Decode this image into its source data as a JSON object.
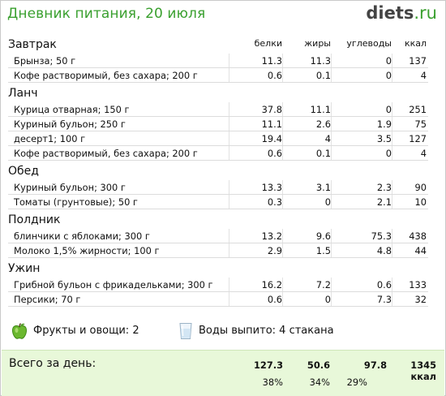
{
  "header": {
    "title": "Дневник питания, 20 июля",
    "logo_main": "diets",
    "logo_tld": ".ru"
  },
  "columns": {
    "protein": "белки",
    "fat": "жиры",
    "carbs": "углеводы",
    "kcal": "ккал"
  },
  "meals": [
    {
      "title": "Завтрак",
      "items": [
        {
          "name": "Брынза; 50 г",
          "protein": "11.3",
          "fat": "11.3",
          "carbs": "0",
          "kcal": "137"
        },
        {
          "name": "Кофе растворимый, без сахара; 200 г",
          "protein": "0.6",
          "fat": "0.1",
          "carbs": "0",
          "kcal": "4"
        }
      ]
    },
    {
      "title": "Ланч",
      "items": [
        {
          "name": "Курица отварная; 150 г",
          "protein": "37.8",
          "fat": "11.1",
          "carbs": "0",
          "kcal": "251"
        },
        {
          "name": "Куриный бульон; 250 г",
          "protein": "11.1",
          "fat": "2.6",
          "carbs": "1.9",
          "kcal": "75"
        },
        {
          "name": "десерт1; 100 г",
          "protein": "19.4",
          "fat": "4",
          "carbs": "3.5",
          "kcal": "127"
        },
        {
          "name": "Кофе растворимый, без сахара; 200 г",
          "protein": "0.6",
          "fat": "0.1",
          "carbs": "0",
          "kcal": "4"
        }
      ]
    },
    {
      "title": "Обед",
      "items": [
        {
          "name": "Куриный бульон; 300 г",
          "protein": "13.3",
          "fat": "3.1",
          "carbs": "2.3",
          "kcal": "90"
        },
        {
          "name": "Томаты (грунтовые); 50 г",
          "protein": "0.3",
          "fat": "0",
          "carbs": "2.1",
          "kcal": "10"
        }
      ]
    },
    {
      "title": "Полдник",
      "items": [
        {
          "name": "блинчики с яблоками; 300 г",
          "protein": "13.2",
          "fat": "9.6",
          "carbs": "75.3",
          "kcal": "438"
        },
        {
          "name": "Молоко 1,5% жирности; 100 г",
          "protein": "2.9",
          "fat": "1.5",
          "carbs": "4.8",
          "kcal": "44"
        }
      ]
    },
    {
      "title": "Ужин",
      "items": [
        {
          "name": "Грибной бульон с фрикадельками; 300 г",
          "protein": "16.2",
          "fat": "7.2",
          "carbs": "0.6",
          "kcal": "133"
        },
        {
          "name": "Персики; 70 г",
          "protein": "0.6",
          "fat": "0",
          "carbs": "7.3",
          "kcal": "32"
        }
      ]
    }
  ],
  "extras": {
    "fruits_veg": "Фрукты и овощи: 2",
    "water": "Воды выпито: 4 стакана",
    "icons": [
      "apple-icon",
      "water-glass-icon"
    ]
  },
  "total": {
    "label": "Всего за день:",
    "protein": "127.3",
    "fat": "50.6",
    "carbs": "97.8",
    "kcal": "1345 ккал",
    "protein_pct": "38%",
    "fat_pct": "34%",
    "carbs_pct": "29%"
  },
  "colors": {
    "accent_green": "#3aa02f",
    "total_bg": "#e8f8d9"
  }
}
